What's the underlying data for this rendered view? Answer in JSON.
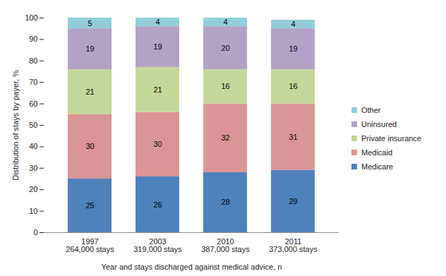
{
  "chart_data": {
    "type": "bar",
    "stacked": true,
    "data_labels": true,
    "grid": false,
    "legend": "right",
    "categories": [
      "1997\n264,000 stays",
      "2003\n319,000 stays",
      "2010\n387,000 stays",
      "2011\n373,000 stays"
    ],
    "x_label": "Year and stays discharged against medical advice, n",
    "y_label": "Distribution of stays by payer, %",
    "ylim": [
      0,
      100
    ],
    "yticks": [
      0,
      10,
      20,
      30,
      40,
      50,
      60,
      70,
      80,
      90,
      100
    ],
    "series": [
      {
        "name": "Medicare",
        "color": "#4f81bd",
        "values": [
          25,
          26,
          28,
          29
        ]
      },
      {
        "name": "Medicaid",
        "color": "#da9694",
        "values": [
          30,
          30,
          32,
          31
        ]
      },
      {
        "name": "Private insurance",
        "color": "#c4d79b",
        "values": [
          21,
          21,
          16,
          16
        ]
      },
      {
        "name": "Uninsured",
        "color": "#b3a2c7",
        "values": [
          19,
          19,
          20,
          19
        ]
      },
      {
        "name": "Other",
        "color": "#92cddc",
        "values": [
          5,
          4,
          4,
          4
        ]
      }
    ]
  }
}
